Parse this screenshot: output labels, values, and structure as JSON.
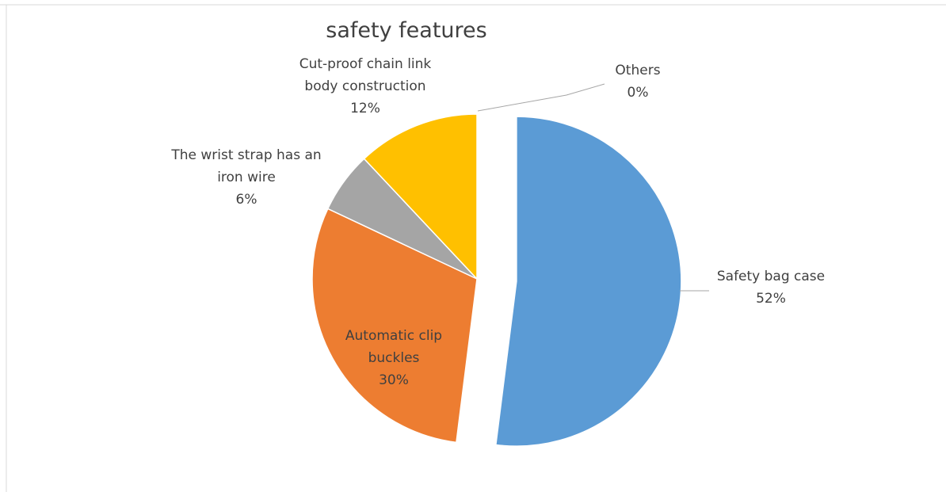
{
  "chart_data": {
    "type": "pie",
    "title": "safety features",
    "slices": [
      {
        "label_lines": [
          "Safety bag case"
        ],
        "value": 52,
        "pct_label": "52%",
        "color": "#5b9bd5",
        "exploded": true
      },
      {
        "label_lines": [
          "Automatic clip",
          "buckles"
        ],
        "value": 30,
        "pct_label": "30%",
        "color": "#ed7d31",
        "exploded": false
      },
      {
        "label_lines": [
          "The wrist strap has an",
          "iron wire"
        ],
        "value": 6,
        "pct_label": "6%",
        "color": "#a5a5a5",
        "exploded": false
      },
      {
        "label_lines": [
          "Cut-proof chain link",
          "body construction"
        ],
        "value": 12,
        "pct_label": "12%",
        "color": "#ffc000",
        "exploded": false
      },
      {
        "label_lines": [
          "Others"
        ],
        "value": 0,
        "pct_label": "0%",
        "color": "#4472c4",
        "exploded": false
      }
    ],
    "legend": "none",
    "data_labels": "category name and percentage"
  }
}
